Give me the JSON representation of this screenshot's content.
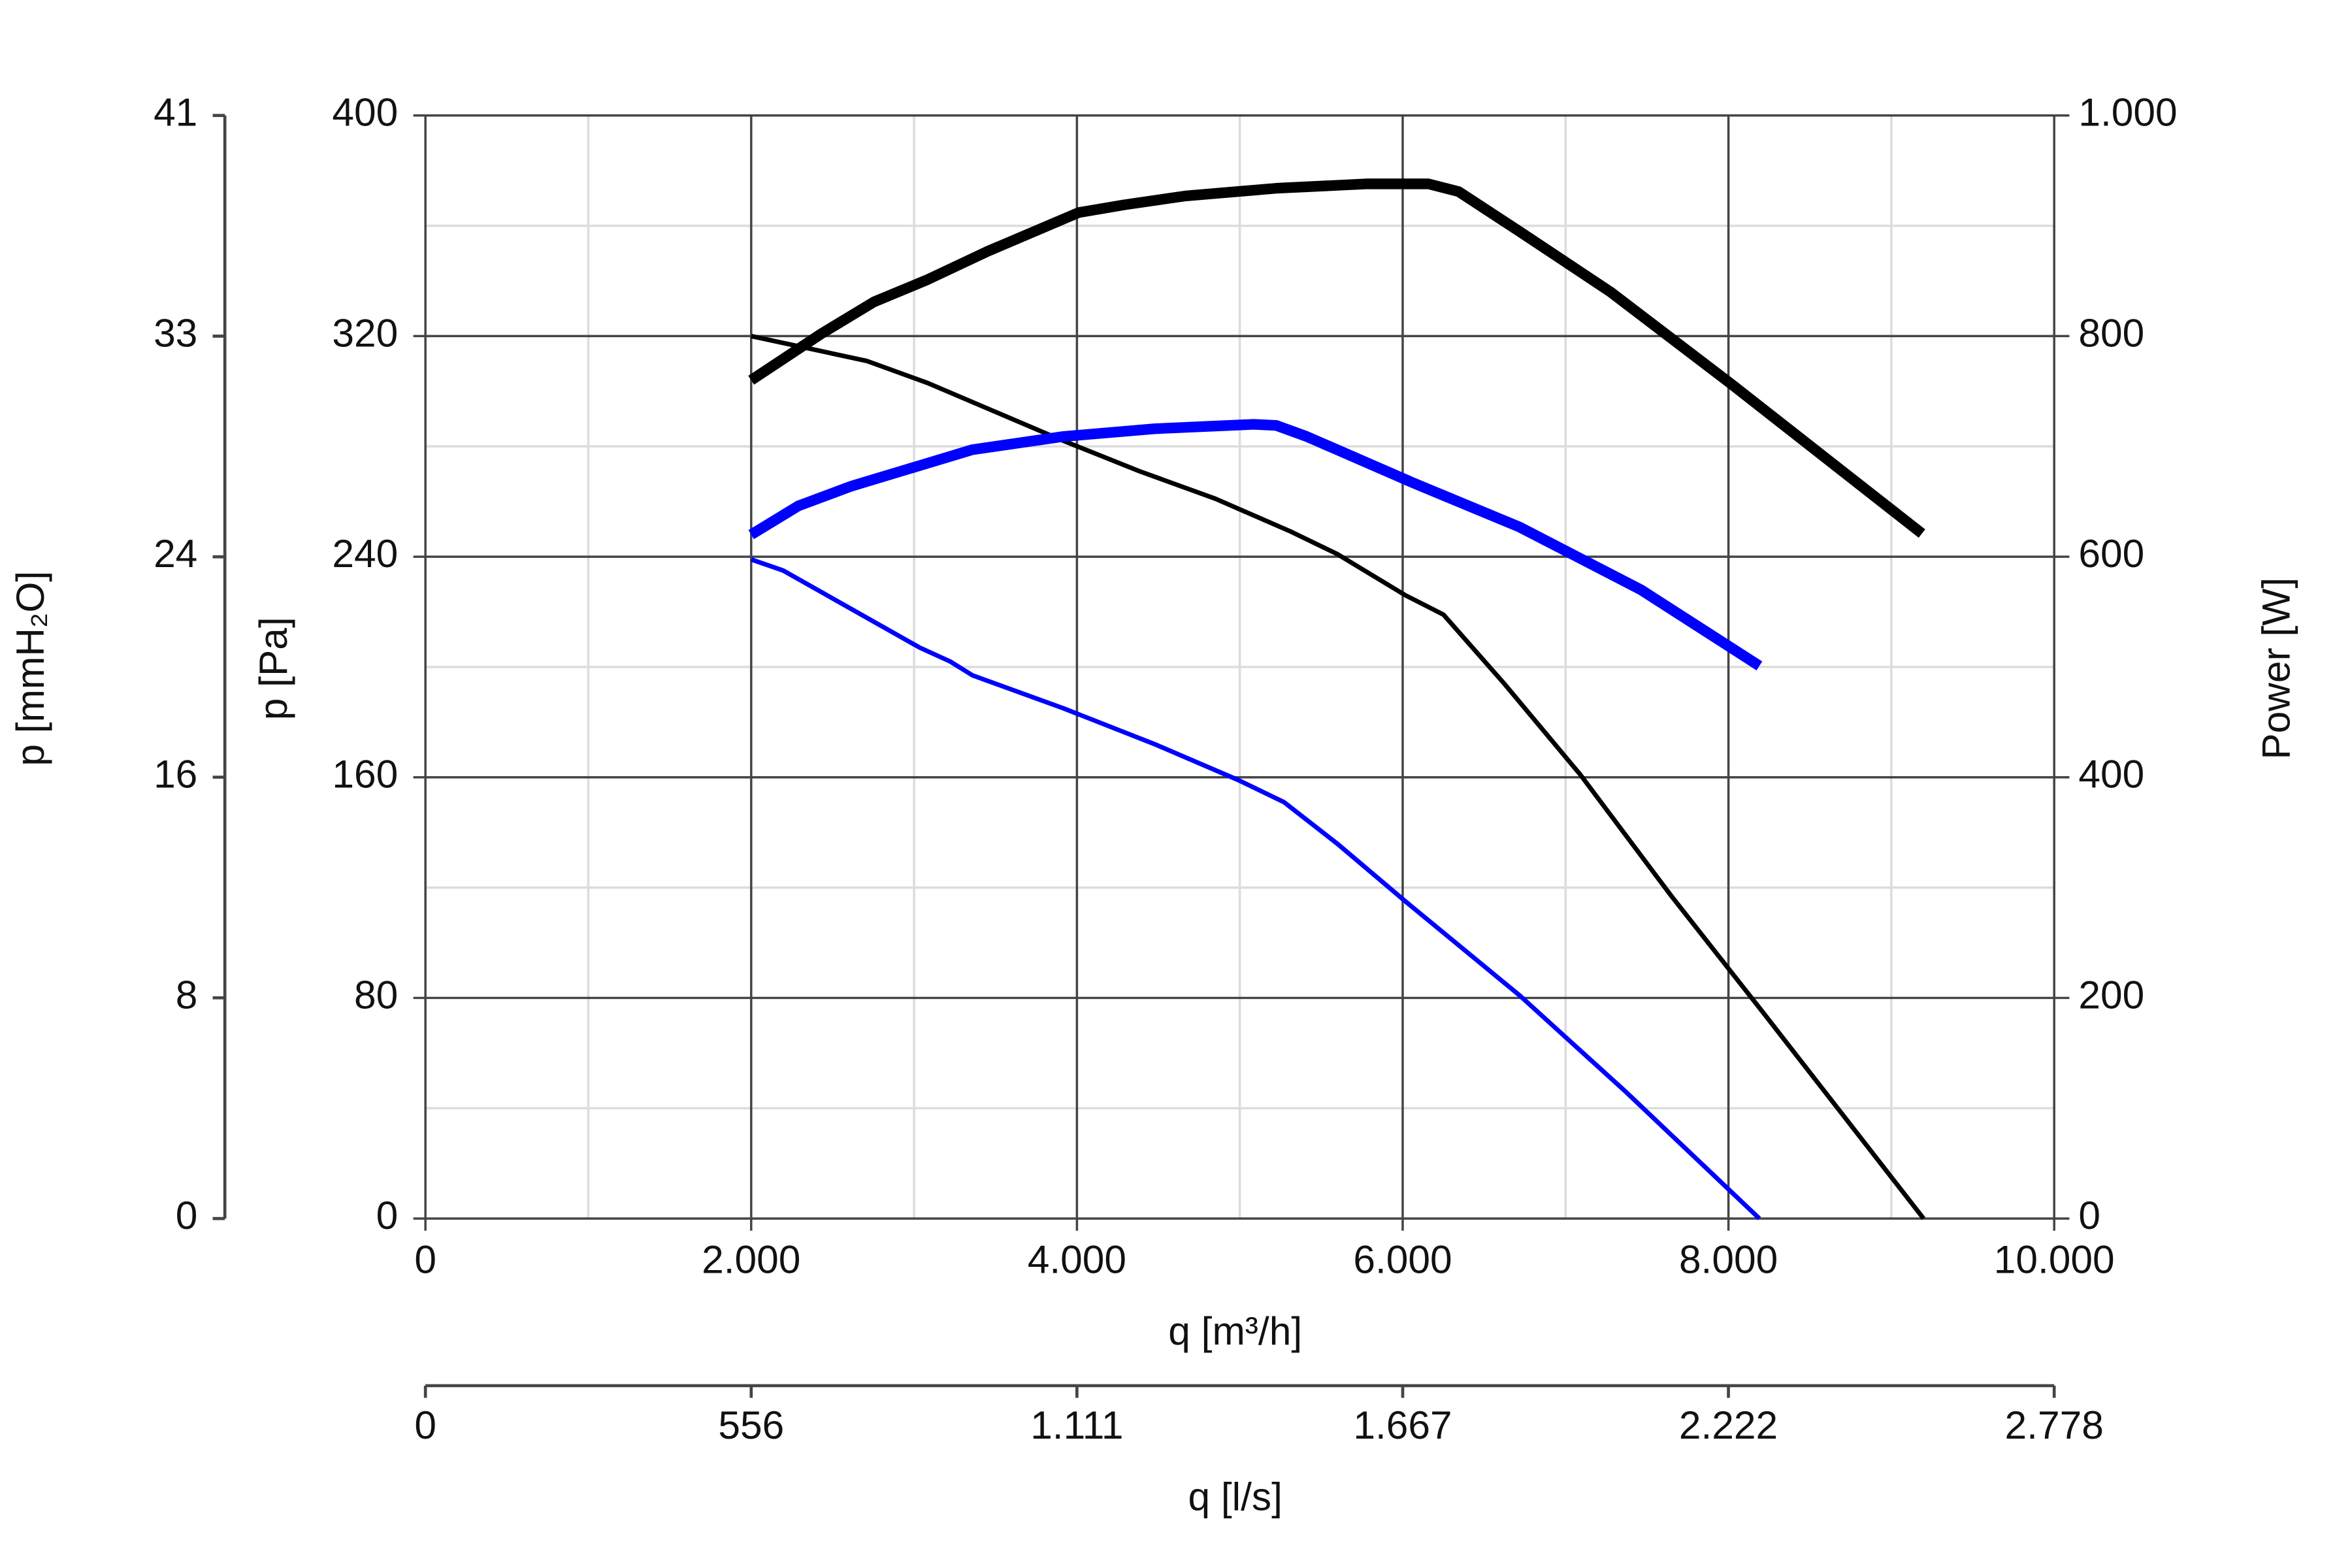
{
  "chart_data": {
    "type": "line",
    "x_label": "q [m³/h]",
    "x2_label": "q [l/s]",
    "y_label": "p [Pa]",
    "y2_label": "Power [W]",
    "y3_label": "p [mmH₂O]",
    "xlim": [
      0,
      10000
    ],
    "xticks": [
      0,
      {
        "value": 2000,
        "label": "2.000"
      },
      {
        "value": 4000,
        "label": "4.000"
      },
      {
        "value": 6000,
        "label": "6.000"
      },
      {
        "value": 8000,
        "label": "8.000"
      },
      {
        "value": 10000,
        "label": "10.000"
      }
    ],
    "x2lim": [
      0,
      2777.8
    ],
    "x2ticks": [
      0,
      {
        "value": 555.6,
        "label": "556"
      },
      {
        "value": 1111.1,
        "label": "1.111"
      },
      {
        "value": 1666.7,
        "label": "1.667"
      },
      {
        "value": 2222.2,
        "label": "2.222"
      },
      {
        "value": 2777.8,
        "label": "2.778"
      }
    ],
    "ylim": [
      0,
      400
    ],
    "yticks": [
      0,
      80,
      160,
      240,
      320,
      400
    ],
    "y2lim": [
      0,
      1000
    ],
    "y2ticks": [
      0,
      200,
      400,
      600,
      800,
      {
        "value": 1000,
        "label": "1.000"
      }
    ],
    "y3lim": [
      0,
      40.79
    ],
    "y3ticks": [
      0,
      {
        "value": 8.16,
        "label": "8"
      },
      {
        "value": 16.32,
        "label": "16"
      },
      {
        "value": 24.47,
        "label": "24"
      },
      {
        "value": 32.63,
        "label": "33"
      },
      {
        "value": 40.79,
        "label": "41"
      }
    ],
    "grid": true,
    "series": [
      {
        "color": "#000000",
        "axis": "y",
        "width": "thin",
        "x": [
          2000,
          2709,
          3083,
          3918,
          4384,
          4851,
          5317,
          5597,
          6017,
          6250,
          6623,
          7090,
          7649,
          8209,
          9198
        ],
        "values": [
          320,
          311,
          303,
          282,
          271,
          261,
          249,
          241,
          226,
          219,
          194,
          161,
          117,
          75,
          0
        ]
      },
      {
        "color": "#0000ff",
        "axis": "y",
        "width": "thin",
        "x": [
          2000,
          2196,
          2616,
          3036,
          3222,
          3358,
          3918,
          4478,
          4991,
          5271,
          5597,
          6017,
          6716,
          7369,
          8190
        ],
        "values": [
          239,
          235,
          221,
          207,
          202,
          197,
          185,
          172,
          159,
          151,
          136,
          115,
          81,
          46,
          0
        ]
      },
      {
        "color": "#000000",
        "axis": "y2",
        "width": "thick",
        "x": [
          2000,
          2429,
          2754,
          3080,
          3454,
          4011,
          4291,
          4664,
          5224,
          5784,
          6157,
          6343,
          6716,
          7276,
          8022,
          9188
        ],
        "values": [
          760,
          802,
          831,
          851,
          877,
          912,
          919,
          927,
          934,
          938,
          938,
          931,
          895,
          840,
          756,
          621
        ]
      },
      {
        "color": "#0000ff",
        "axis": "y2",
        "width": "thick",
        "x": [
          2000,
          2289,
          2616,
          3358,
          3918,
          4478,
          5084,
          5224,
          5410,
          6063,
          6716,
          7463,
          8190
        ],
        "values": [
          620,
          646,
          664,
          697,
          709,
          716,
          720,
          719,
          709,
          667,
          627,
          570,
          501
        ]
      }
    ]
  }
}
